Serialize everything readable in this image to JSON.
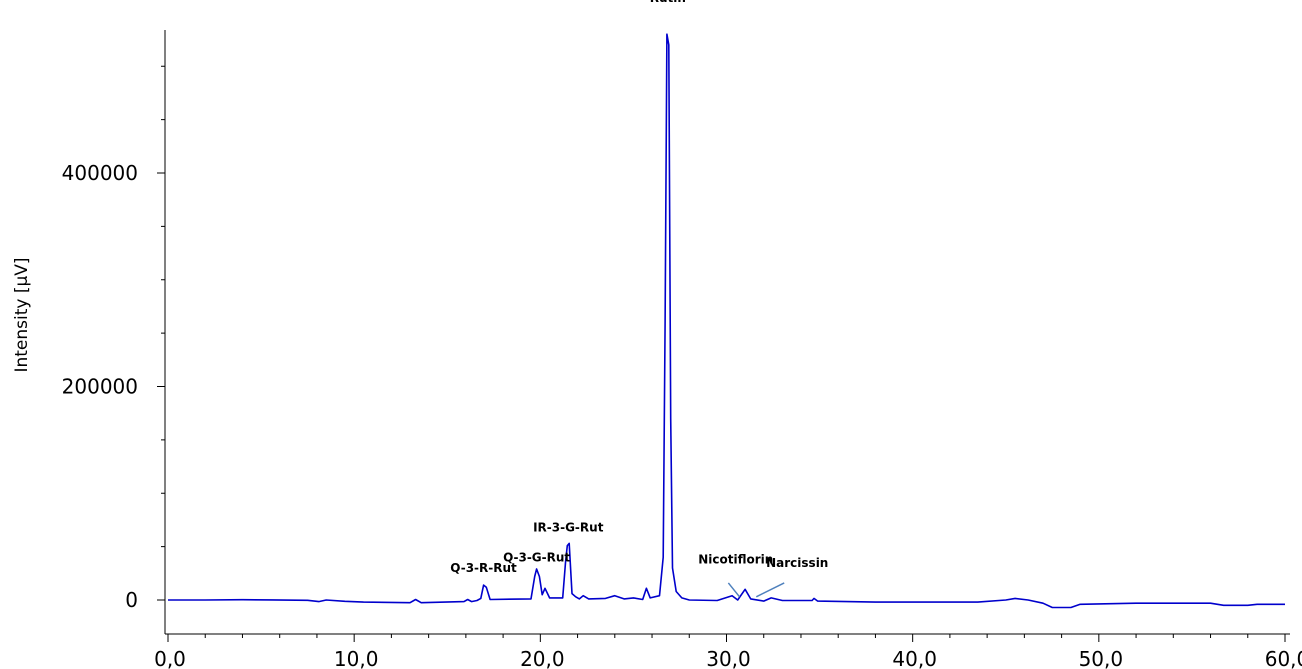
{
  "chart_data": {
    "type": "line",
    "title": "",
    "xlabel": "",
    "ylabel": "Intensity [µV]",
    "xlim": [
      -0.2,
      60.2
    ],
    "ylim": [
      -30000,
      535000
    ],
    "x_ticks": [
      0,
      10,
      20,
      30,
      40,
      50,
      60
    ],
    "x_tick_labels": [
      "0,0",
      "10,0",
      "20,0",
      "30,0",
      "40,0",
      "50,0",
      "60,0"
    ],
    "y_ticks": [
      0,
      200000,
      400000
    ],
    "y_tick_labels": [
      "0",
      "200000",
      "400000"
    ],
    "grid": false,
    "legend": "none",
    "line_color": "#0000cc",
    "pointer_color": "#4f81bd",
    "series": [
      {
        "values": [
          [
            0,
            0
          ],
          [
            2,
            0
          ],
          [
            4,
            300
          ],
          [
            5.6,
            100
          ],
          [
            7.5,
            -300
          ],
          [
            8.1,
            -1500
          ],
          [
            8.5,
            0
          ],
          [
            9.5,
            -1200
          ],
          [
            10.5,
            -2000
          ],
          [
            13,
            -2500
          ],
          [
            13.3,
            500
          ],
          [
            13.6,
            -2500
          ],
          [
            15.9,
            -1500
          ],
          [
            16.1,
            500
          ],
          [
            16.3,
            -1500
          ],
          [
            16.6,
            -500
          ],
          [
            16.8,
            1500
          ],
          [
            16.95,
            14000
          ],
          [
            17.1,
            12000
          ],
          [
            17.3,
            500
          ],
          [
            19.5,
            1000
          ],
          [
            19.7,
            22000
          ],
          [
            19.8,
            29000
          ],
          [
            19.95,
            22000
          ],
          [
            20.1,
            5000
          ],
          [
            20.25,
            11000
          ],
          [
            20.5,
            2000
          ],
          [
            21.2,
            2000
          ],
          [
            21.35,
            35000
          ],
          [
            21.45,
            51000
          ],
          [
            21.55,
            53000
          ],
          [
            21.7,
            6000
          ],
          [
            21.9,
            3000
          ],
          [
            22.1,
            1000
          ],
          [
            22.3,
            4000
          ],
          [
            22.6,
            1000
          ],
          [
            23.5,
            1500
          ],
          [
            24,
            4000
          ],
          [
            24.5,
            1000
          ],
          [
            25,
            2000
          ],
          [
            25.5,
            500
          ],
          [
            25.7,
            11000
          ],
          [
            25.9,
            2000
          ],
          [
            26.4,
            4000
          ],
          [
            26.6,
            40000
          ],
          [
            26.7,
            260000
          ],
          [
            26.8,
            530000
          ],
          [
            26.9,
            520000
          ],
          [
            27.0,
            170000
          ],
          [
            27.1,
            30000
          ],
          [
            27.3,
            8000
          ],
          [
            27.6,
            2000
          ],
          [
            28,
            0
          ],
          [
            29.5,
            -500
          ],
          [
            30.3,
            4000
          ],
          [
            30.6,
            0
          ],
          [
            31.0,
            10000
          ],
          [
            31.3,
            1000
          ],
          [
            32.0,
            -1000
          ],
          [
            32.4,
            2000
          ],
          [
            33,
            -500
          ],
          [
            34.6,
            -500
          ],
          [
            34.7,
            1500
          ],
          [
            34.9,
            -1000
          ],
          [
            38,
            -2000
          ],
          [
            43.5,
            -2000
          ],
          [
            45,
            0
          ],
          [
            45.5,
            1500
          ],
          [
            46.2,
            0
          ],
          [
            47,
            -3000
          ],
          [
            47.5,
            -7000
          ],
          [
            48.5,
            -7000
          ],
          [
            49,
            -4000
          ],
          [
            52,
            -3000
          ],
          [
            56,
            -3000
          ],
          [
            56.7,
            -5000
          ],
          [
            58,
            -5000
          ],
          [
            58.5,
            -4000
          ],
          [
            60,
            -4000
          ]
        ]
      }
    ],
    "annotations": [
      {
        "text": "Rutin",
        "x": 26.85,
        "y": 560000
      },
      {
        "text": "IR-3-G-Rut",
        "x": 21.5,
        "y": 64000
      },
      {
        "text": "Q-3-G-Rut",
        "x": 19.8,
        "y": 36000
      },
      {
        "text": "Q-3-R-Rut",
        "x": 16.95,
        "y": 26000
      },
      {
        "text": "Nicotiflorin",
        "x": 30.5,
        "y": 34000,
        "pointer_from": [
          30.1,
          16000
        ],
        "pointer_to": [
          30.7,
          3000
        ]
      },
      {
        "text": "Narcissin",
        "x": 33.8,
        "y": 31000,
        "pointer_from": [
          33.1,
          16000
        ],
        "pointer_to": [
          31.6,
          3000
        ]
      }
    ]
  }
}
